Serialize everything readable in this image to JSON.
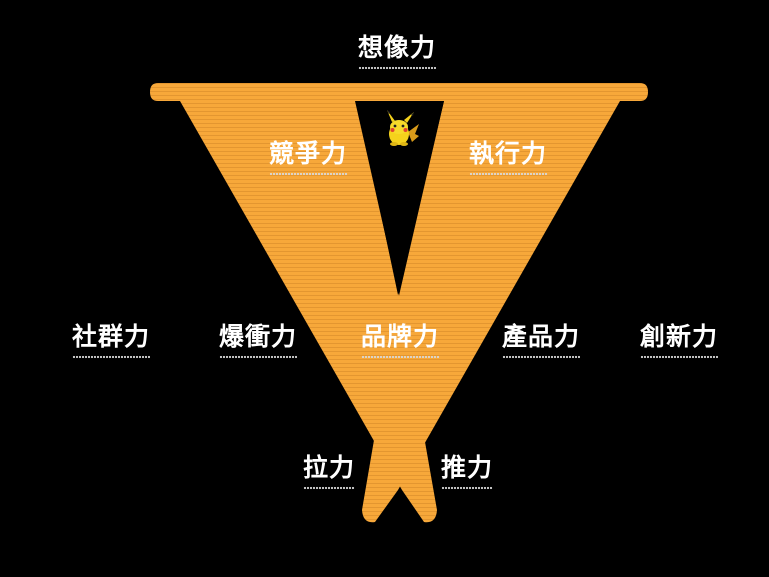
{
  "colors": {
    "background": "#000000",
    "shape_fill": "#f7a83a",
    "stripe": "#e39630",
    "text": "#ffffff"
  },
  "icons": {
    "mascot": "pikachu-icon"
  },
  "labels": {
    "imagination": "想像力",
    "competitiveness": "競爭力",
    "execution": "執行力",
    "community": "社群力",
    "explosive": "爆衝力",
    "brand": "品牌力",
    "product": "產品力",
    "innovation": "創新力",
    "pull": "拉力",
    "push": "推力"
  }
}
